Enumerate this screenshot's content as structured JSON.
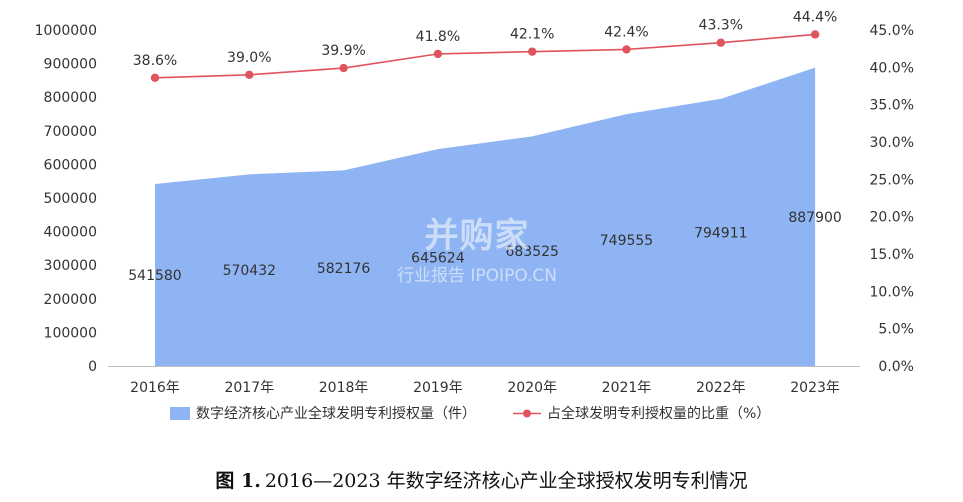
{
  "chart_data": {
    "type": "area",
    "categories": [
      "2016年",
      "2017年",
      "2018年",
      "2019年",
      "2020年",
      "2021年",
      "2022年",
      "2023年"
    ],
    "series": [
      {
        "name": "数字经济核心产业全球发明专利授权量（件）",
        "type": "area",
        "axis": "left",
        "color": "#8fb4f3",
        "values": [
          541580,
          570432,
          582176,
          645624,
          683525,
          749555,
          794911,
          887900
        ],
        "labels": [
          "541580",
          "570432",
          "582176",
          "645624",
          "683525",
          "749555",
          "794911",
          "887900"
        ]
      },
      {
        "name": "占全球发明专利授权量的比重（%）",
        "type": "line",
        "axis": "right",
        "color": "#e0545e",
        "values": [
          38.6,
          39.0,
          39.9,
          41.8,
          42.1,
          42.4,
          43.3,
          44.4
        ],
        "labels": [
          "38.6%",
          "39.0%",
          "39.9%",
          "41.8%",
          "42.1%",
          "42.4%",
          "43.3%",
          "44.4%"
        ]
      }
    ],
    "y_left": {
      "min": 0,
      "max": 1000000,
      "ticks": [
        "0",
        "100000",
        "200000",
        "300000",
        "400000",
        "500000",
        "600000",
        "700000",
        "800000",
        "900000",
        "1000000"
      ]
    },
    "y_right": {
      "min": 0,
      "max": 45,
      "ticks": [
        "0.0%",
        "5.0%",
        "10.0%",
        "15.0%",
        "20.0%",
        "25.0%",
        "30.0%",
        "35.0%",
        "40.0%",
        "45.0%"
      ]
    },
    "grid": false,
    "legend_position": "bottom"
  },
  "caption": {
    "lead": "图 1.",
    "text": "2016—2023 年数字经济核心产业全球授权发明专利情况"
  },
  "watermark": {
    "brand": "并购家",
    "sub": "行业报告 IPOIPO.CN"
  }
}
